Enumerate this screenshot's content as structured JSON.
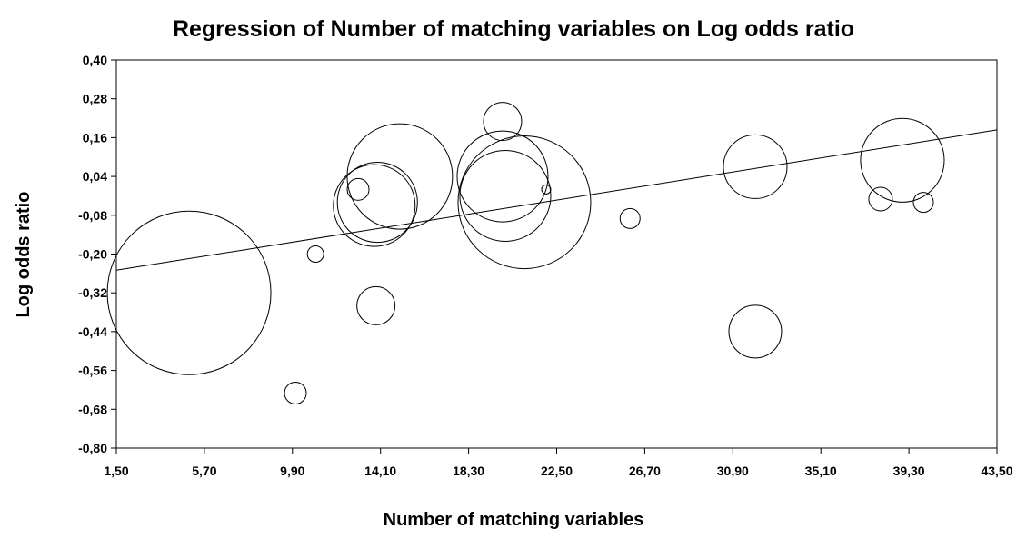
{
  "chart_data": {
    "type": "bubble",
    "title": "Regression of Number of matching variables on Log odds ratio",
    "x_label": "Number of matching variables",
    "y_label": "Log odds ratio",
    "xlim": [
      1.5,
      43.5
    ],
    "ylim": [
      -0.8,
      0.4
    ],
    "xticks": [
      {
        "value": 1.5,
        "label": "1,50"
      },
      {
        "value": 5.7,
        "label": "5,70"
      },
      {
        "value": 9.9,
        "label": "9,90"
      },
      {
        "value": 14.1,
        "label": "14,10"
      },
      {
        "value": 18.3,
        "label": "18,30"
      },
      {
        "value": 22.5,
        "label": "22,50"
      },
      {
        "value": 26.7,
        "label": "26,70"
      },
      {
        "value": 30.9,
        "label": "30,90"
      },
      {
        "value": 35.1,
        "label": "35,10"
      },
      {
        "value": 39.3,
        "label": "39,30"
      },
      {
        "value": 43.5,
        "label": "43,50"
      }
    ],
    "yticks": [
      {
        "value": 0.4,
        "label": "0,40"
      },
      {
        "value": 0.28,
        "label": "0,28"
      },
      {
        "value": 0.16,
        "label": "0,16"
      },
      {
        "value": 0.04,
        "label": "0,04"
      },
      {
        "value": -0.08,
        "label": "-0,08"
      },
      {
        "value": -0.2,
        "label": "-0,20"
      },
      {
        "value": -0.32,
        "label": "-0,32"
      },
      {
        "value": -0.44,
        "label": "-0,44"
      },
      {
        "value": -0.56,
        "label": "-0,56"
      },
      {
        "value": -0.68,
        "label": "-0,68"
      },
      {
        "value": -0.8,
        "label": "-0,80"
      }
    ],
    "series": [
      {
        "color": "#000000",
        "x": [
          4.97,
          10.04,
          11.0,
          13.03,
          13.8,
          13.95,
          15.02,
          13.88,
          19.92,
          20.05,
          19.92,
          20.96,
          22.0,
          26.0,
          31.97,
          31.97,
          37.95,
          38.99,
          39.99
        ],
        "values": [
          -0.32,
          -0.63,
          -0.2,
          0.0,
          -0.05,
          -0.04,
          0.04,
          -0.36,
          0.21,
          -0.02,
          0.04,
          -0.04,
          0.0,
          -0.09,
          0.07,
          -0.44,
          -0.03,
          0.09,
          -0.04
        ],
        "sizes": [
          81,
          1.44,
          0.81,
          1.44,
          20.25,
          19.4,
          33.6,
          4.41,
          4.41,
          25,
          25,
          53.3,
          0.25,
          1.21,
          12.25,
          8.41,
          1.69,
          21.2,
          1.21
        ]
      }
    ],
    "regression": {
      "color": "#000000",
      "x": [
        1.5,
        43.5
      ],
      "values": [
        -0.25,
        0.184
      ]
    }
  }
}
